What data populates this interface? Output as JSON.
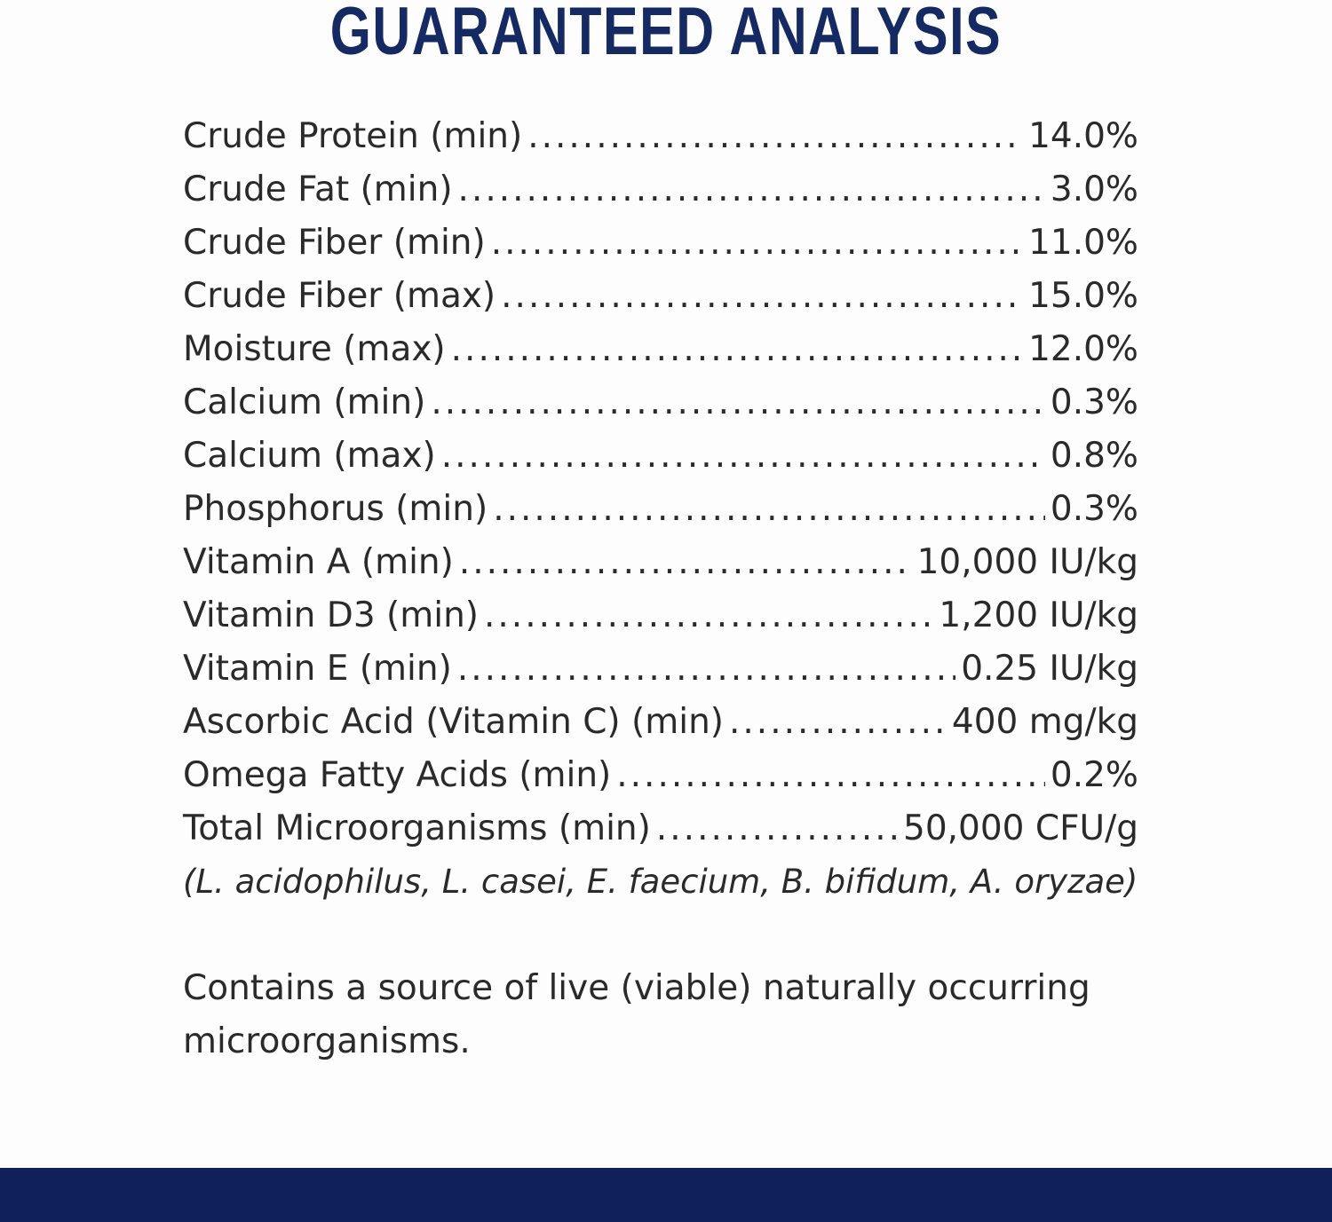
{
  "title": "GUARANTEED ANALYSIS",
  "rows": [
    {
      "name": "Crude Protein (min)",
      "value": "14.0%"
    },
    {
      "name": "Crude Fat (min)",
      "value": "3.0%"
    },
    {
      "name": "Crude Fiber (min)",
      "value": "11.0%"
    },
    {
      "name": "Crude Fiber (max)",
      "value": "15.0%"
    },
    {
      "name": "Moisture (max)",
      "value": "12.0%"
    },
    {
      "name": "Calcium (min)",
      "value": "0.3%"
    },
    {
      "name": "Calcium (max)",
      "value": "0.8%"
    },
    {
      "name": "Phosphorus (min)",
      "value": "0.3%"
    },
    {
      "name": "Vitamin A (min)",
      "value": "10,000 IU/kg"
    },
    {
      "name": "Vitamin D3 (min)",
      "value": "1,200 IU/kg"
    },
    {
      "name": "Vitamin E (min)",
      "value": "0.25 IU/kg"
    },
    {
      "name": "Ascorbic Acid (Vitamin C) (min)",
      "value": "400 mg/kg"
    },
    {
      "name": "Omega Fatty Acids (min)",
      "value": "0.2%"
    },
    {
      "name": "Total Microorganisms (min)",
      "value": "50,000 CFU/g"
    }
  ],
  "note": "(L. acidophilus, L. casei, E. faecium, B. bifidum, A. oryzae)",
  "paragraph": "Contains a source of live (viable) naturally occurring microorganisms.",
  "colors": {
    "title": "#152a63",
    "footer_bar": "#0f205b"
  }
}
